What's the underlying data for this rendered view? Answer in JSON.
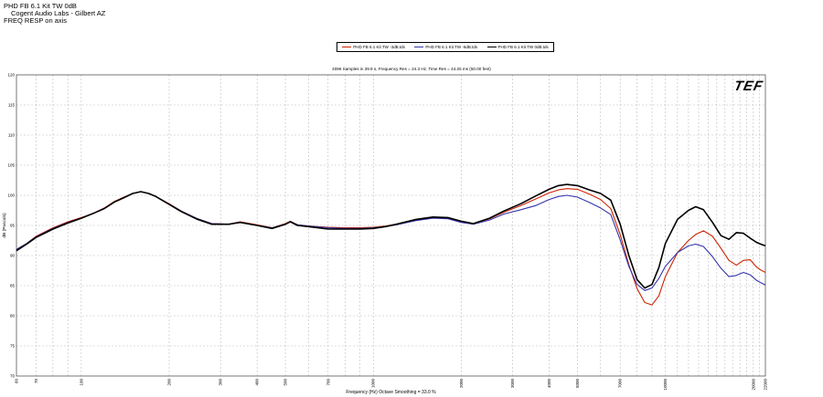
{
  "header": {
    "line1": "PHD FB 6.1 Kit  TW 0dB",
    "line2": "Cogent Audio Labs - Gilbert AZ",
    "line3": "FREQ RESP  on axis"
  },
  "logo_text": "TEF",
  "chart_data": {
    "type": "line",
    "title": "4096 Samples in 39.9 s, Frequency Res = 24.3 Hz, Time Res = 44.25 ms (50.00 feet)",
    "xlabel": "Frequency (Hz) Octave Smoothing = 33.0 %",
    "ylabel": "dB (Pascals)",
    "xscale": "log",
    "xlim": [
      60,
      22000
    ],
    "ylim": [
      70,
      120
    ],
    "grid": true,
    "legend_position": "top-center",
    "yticks": [
      70,
      75,
      80,
      85,
      90,
      95,
      100,
      105,
      110,
      115,
      120
    ],
    "xticks": [
      {
        "value": 60,
        "label": "60"
      },
      {
        "value": 70,
        "label": "70"
      },
      {
        "value": 100,
        "label": "100"
      },
      {
        "value": 200,
        "label": "200"
      },
      {
        "value": 300,
        "label": "300"
      },
      {
        "value": 400,
        "label": "400"
      },
      {
        "value": 500,
        "label": "500"
      },
      {
        "value": 700,
        "label": "700"
      },
      {
        "value": 1000,
        "label": "1000"
      },
      {
        "value": 2000,
        "label": "2000"
      },
      {
        "value": 3000,
        "label": "3000"
      },
      {
        "value": 4000,
        "label": "4000"
      },
      {
        "value": 5000,
        "label": "5000"
      },
      {
        "value": 7000,
        "label": "7000"
      },
      {
        "value": 10000,
        "label": "10000"
      },
      {
        "value": 20000,
        "label": "20000"
      },
      {
        "value": 22000,
        "label": "22000"
      }
    ],
    "series": [
      {
        "name": "PHD FB 6.1 Kit  TW -3dB.tds",
        "color": "#cc2200",
        "points": [
          [
            60,
            91
          ],
          [
            65,
            92
          ],
          [
            70,
            93.2
          ],
          [
            80,
            94.6
          ],
          [
            90,
            95.6
          ],
          [
            100,
            96.3
          ],
          [
            110,
            97
          ],
          [
            120,
            97.9
          ],
          [
            130,
            99
          ],
          [
            140,
            99.7
          ],
          [
            150,
            100.3
          ],
          [
            160,
            100.6
          ],
          [
            170,
            100.3
          ],
          [
            180,
            99.8
          ],
          [
            200,
            98.6
          ],
          [
            220,
            97.4
          ],
          [
            250,
            96.1
          ],
          [
            280,
            95.3
          ],
          [
            320,
            95.2
          ],
          [
            350,
            95.6
          ],
          [
            400,
            95.1
          ],
          [
            450,
            94.6
          ],
          [
            500,
            95.3
          ],
          [
            520,
            95.7
          ],
          [
            550,
            95.1
          ],
          [
            600,
            94.9
          ],
          [
            700,
            94.7
          ],
          [
            800,
            94.6
          ],
          [
            900,
            94.6
          ],
          [
            1000,
            94.7
          ],
          [
            1100,
            94.9
          ],
          [
            1200,
            95.2
          ],
          [
            1400,
            95.9
          ],
          [
            1600,
            96.3
          ],
          [
            1800,
            96.2
          ],
          [
            2000,
            95.6
          ],
          [
            2200,
            95.3
          ],
          [
            2500,
            96.1
          ],
          [
            2800,
            97.2
          ],
          [
            3200,
            98.3
          ],
          [
            3600,
            99.4
          ],
          [
            4000,
            100.4
          ],
          [
            4300,
            100.9
          ],
          [
            4600,
            101.1
          ],
          [
            5000,
            101
          ],
          [
            5500,
            100.2
          ],
          [
            6000,
            99.3
          ],
          [
            6500,
            97.8
          ],
          [
            7000,
            93.5
          ],
          [
            7500,
            88.5
          ],
          [
            8000,
            84.5
          ],
          [
            8500,
            82.2
          ],
          [
            9000,
            81.8
          ],
          [
            9500,
            83.3
          ],
          [
            10000,
            86.5
          ],
          [
            11000,
            90.5
          ],
          [
            12000,
            92.5
          ],
          [
            12700,
            93.5
          ],
          [
            13500,
            94.1
          ],
          [
            14500,
            93.2
          ],
          [
            15500,
            91.2
          ],
          [
            16500,
            89.2
          ],
          [
            17500,
            88.4
          ],
          [
            18500,
            89.2
          ],
          [
            19500,
            89.3
          ],
          [
            20500,
            88.1
          ],
          [
            21200,
            87.6
          ],
          [
            22000,
            87.2
          ]
        ]
      },
      {
        "name": "PHD FB 6.1 Kit  TW -6dB.tds",
        "color": "#3333aa",
        "points": [
          [
            60,
            91
          ],
          [
            65,
            92
          ],
          [
            70,
            93.1
          ],
          [
            80,
            94.5
          ],
          [
            90,
            95.5
          ],
          [
            100,
            96.2
          ],
          [
            110,
            97
          ],
          [
            120,
            97.8
          ],
          [
            130,
            98.9
          ],
          [
            140,
            99.6
          ],
          [
            150,
            100.3
          ],
          [
            160,
            100.6
          ],
          [
            170,
            100.3
          ],
          [
            180,
            99.8
          ],
          [
            200,
            98.5
          ],
          [
            220,
            97.4
          ],
          [
            250,
            96.1
          ],
          [
            280,
            95.3
          ],
          [
            320,
            95.2
          ],
          [
            350,
            95.5
          ],
          [
            400,
            95
          ],
          [
            450,
            94.6
          ],
          [
            500,
            95.2
          ],
          [
            520,
            95.6
          ],
          [
            550,
            95.1
          ],
          [
            600,
            94.9
          ],
          [
            700,
            94.6
          ],
          [
            800,
            94.5
          ],
          [
            900,
            94.5
          ],
          [
            1000,
            94.6
          ],
          [
            1100,
            94.8
          ],
          [
            1200,
            95.1
          ],
          [
            1400,
            95.8
          ],
          [
            1600,
            96.2
          ],
          [
            1800,
            96.1
          ],
          [
            2000,
            95.5
          ],
          [
            2200,
            95.2
          ],
          [
            2500,
            95.9
          ],
          [
            2800,
            96.9
          ],
          [
            3200,
            97.6
          ],
          [
            3600,
            98.3
          ],
          [
            4000,
            99.3
          ],
          [
            4300,
            99.8
          ],
          [
            4600,
            100
          ],
          [
            5000,
            99.7
          ],
          [
            5500,
            98.8
          ],
          [
            6000,
            97.9
          ],
          [
            6500,
            96.8
          ],
          [
            7000,
            92.6
          ],
          [
            7500,
            88.2
          ],
          [
            8000,
            85.2
          ],
          [
            8500,
            84.2
          ],
          [
            9000,
            84.6
          ],
          [
            9500,
            86.2
          ],
          [
            10000,
            88.2
          ],
          [
            11000,
            90.5
          ],
          [
            12000,
            91.6
          ],
          [
            12700,
            91.9
          ],
          [
            13500,
            91.5
          ],
          [
            14500,
            89.8
          ],
          [
            15500,
            87.9
          ],
          [
            16500,
            86.5
          ],
          [
            17500,
            86.7
          ],
          [
            18500,
            87.2
          ],
          [
            19500,
            86.8
          ],
          [
            20500,
            85.9
          ],
          [
            21200,
            85.5
          ],
          [
            22000,
            85.1
          ]
        ]
      },
      {
        "name": "PHD FB 6.1 Kit  TW 0dB.tds",
        "color": "#000000",
        "points": [
          [
            60,
            90.8
          ],
          [
            65,
            91.9
          ],
          [
            70,
            93
          ],
          [
            80,
            94.4
          ],
          [
            90,
            95.4
          ],
          [
            100,
            96.2
          ],
          [
            110,
            97
          ],
          [
            120,
            97.8
          ],
          [
            130,
            98.9
          ],
          [
            140,
            99.6
          ],
          [
            150,
            100.3
          ],
          [
            160,
            100.6
          ],
          [
            170,
            100.3
          ],
          [
            180,
            99.8
          ],
          [
            200,
            98.5
          ],
          [
            220,
            97.3
          ],
          [
            250,
            96
          ],
          [
            280,
            95.2
          ],
          [
            320,
            95.2
          ],
          [
            350,
            95.5
          ],
          [
            400,
            95
          ],
          [
            450,
            94.5
          ],
          [
            500,
            95.2
          ],
          [
            520,
            95.6
          ],
          [
            550,
            95
          ],
          [
            600,
            94.8
          ],
          [
            700,
            94.4
          ],
          [
            800,
            94.4
          ],
          [
            900,
            94.4
          ],
          [
            1000,
            94.5
          ],
          [
            1100,
            94.8
          ],
          [
            1200,
            95.2
          ],
          [
            1400,
            96
          ],
          [
            1600,
            96.4
          ],
          [
            1800,
            96.3
          ],
          [
            2000,
            95.7
          ],
          [
            2200,
            95.3
          ],
          [
            2500,
            96.2
          ],
          [
            2800,
            97.4
          ],
          [
            3200,
            98.6
          ],
          [
            3600,
            99.9
          ],
          [
            4000,
            101
          ],
          [
            4300,
            101.6
          ],
          [
            4600,
            101.8
          ],
          [
            5000,
            101.6
          ],
          [
            5500,
            100.9
          ],
          [
            6000,
            100.3
          ],
          [
            6500,
            99.2
          ],
          [
            7000,
            95.2
          ],
          [
            7500,
            90
          ],
          [
            8000,
            86
          ],
          [
            8500,
            84.6
          ],
          [
            9000,
            85.2
          ],
          [
            9500,
            88
          ],
          [
            10000,
            92
          ],
          [
            11000,
            96
          ],
          [
            12000,
            97.5
          ],
          [
            12700,
            98.1
          ],
          [
            13500,
            97.6
          ],
          [
            14500,
            95.5
          ],
          [
            15500,
            93.3
          ],
          [
            16500,
            92.7
          ],
          [
            17500,
            93.8
          ],
          [
            18500,
            93.7
          ],
          [
            19500,
            92.9
          ],
          [
            20500,
            92.2
          ],
          [
            21200,
            91.9
          ],
          [
            22000,
            91.6
          ]
        ]
      }
    ]
  }
}
